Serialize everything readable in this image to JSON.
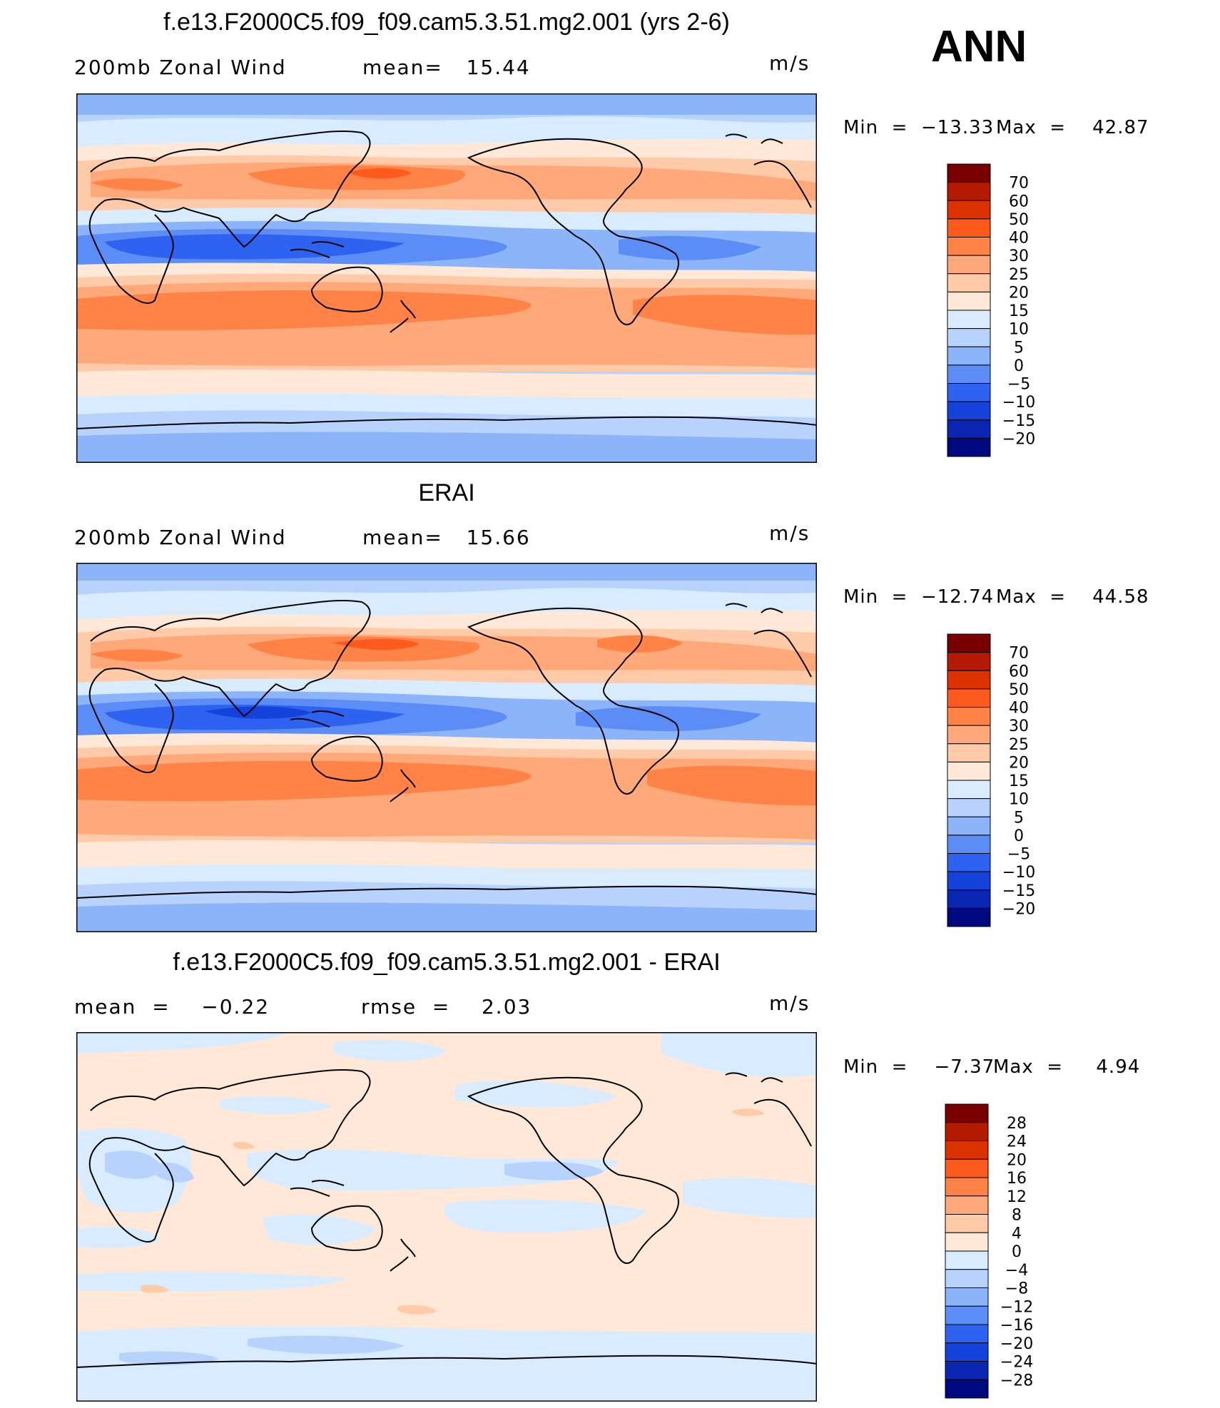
{
  "season": "ANN",
  "panels": [
    {
      "title": "f.e13.F2000C5.f09_f09.cam5.3.51.mg2.001 (yrs 2-6)",
      "left_label": "200mb Zonal Wind",
      "mid_label": "mean=   15.44",
      "units": "m/s",
      "min_label": "Min  =  −13.33",
      "max_label": "Max  =    42.87"
    },
    {
      "title": "ERAI",
      "left_label": "200mb Zonal Wind",
      "mid_label": "mean=   15.66",
      "units": "m/s",
      "min_label": "Min  =  −12.74",
      "max_label": "Max  =    44.58"
    },
    {
      "title": "f.e13.F2000C5.f09_f09.cam5.3.51.mg2.001 - ERAI",
      "left_label": "mean  =    −0.22",
      "mid_label": "rmse  =    2.03",
      "units": "m/s",
      "min_label": "Min  =    −7.37",
      "max_label": "Max  =     4.94"
    }
  ],
  "chart_data": [
    {
      "type": "heatmap",
      "title": "f.e13.F2000C5.f09_f09.cam5.3.51.mg2.001 (yrs 2-6)",
      "variable": "200mb Zonal Wind",
      "units": "m/s",
      "mean": 15.44,
      "min": -13.33,
      "max": 42.87,
      "colorbar_levels": [
        "70",
        "60",
        "50",
        "40",
        "30",
        "25",
        "20",
        "15",
        "10",
        "5",
        "0",
        "−5",
        "−10",
        "−15",
        "−20"
      ],
      "colorbar_colors": [
        "#7a0000",
        "#b31a00",
        "#dc3200",
        "#ff5a1e",
        "#ff8246",
        "#ffa87a",
        "#ffcaa8",
        "#ffe8d8",
        "#d8ebff",
        "#b7d3fd",
        "#8cb4fa",
        "#5c8cf5",
        "#2d63f0",
        "#1442da",
        "#0a27b4",
        "#000a80"
      ]
    },
    {
      "type": "heatmap",
      "title": "ERAI",
      "variable": "200mb Zonal Wind",
      "units": "m/s",
      "mean": 15.66,
      "min": -12.74,
      "max": 44.58,
      "colorbar_levels": [
        "70",
        "60",
        "50",
        "40",
        "30",
        "25",
        "20",
        "15",
        "10",
        "5",
        "0",
        "−5",
        "−10",
        "−15",
        "−20"
      ],
      "colorbar_colors": [
        "#7a0000",
        "#b31a00",
        "#dc3200",
        "#ff5a1e",
        "#ff8246",
        "#ffa87a",
        "#ffcaa8",
        "#ffe8d8",
        "#d8ebff",
        "#b7d3fd",
        "#8cb4fa",
        "#5c8cf5",
        "#2d63f0",
        "#1442da",
        "#0a27b4",
        "#000a80"
      ]
    },
    {
      "type": "heatmap",
      "title": "f.e13.F2000C5.f09_f09.cam5.3.51.mg2.001 - ERAI",
      "units": "m/s",
      "mean": -0.22,
      "rmse": 2.03,
      "min": -7.37,
      "max": 4.94,
      "colorbar_levels": [
        "28",
        "24",
        "20",
        "16",
        "12",
        "8",
        "4",
        "0",
        "−4",
        "−8",
        "−12",
        "−16",
        "−20",
        "−24",
        "−28"
      ],
      "colorbar_colors": [
        "#7a0000",
        "#b31a00",
        "#dc3200",
        "#ff5a1e",
        "#ff8246",
        "#ffa87a",
        "#ffcaa8",
        "#ffe8d8",
        "#d8ebff",
        "#b7d3fd",
        "#8cb4fa",
        "#5c8cf5",
        "#2d63f0",
        "#1442da",
        "#0a27b4",
        "#000a80"
      ]
    }
  ]
}
